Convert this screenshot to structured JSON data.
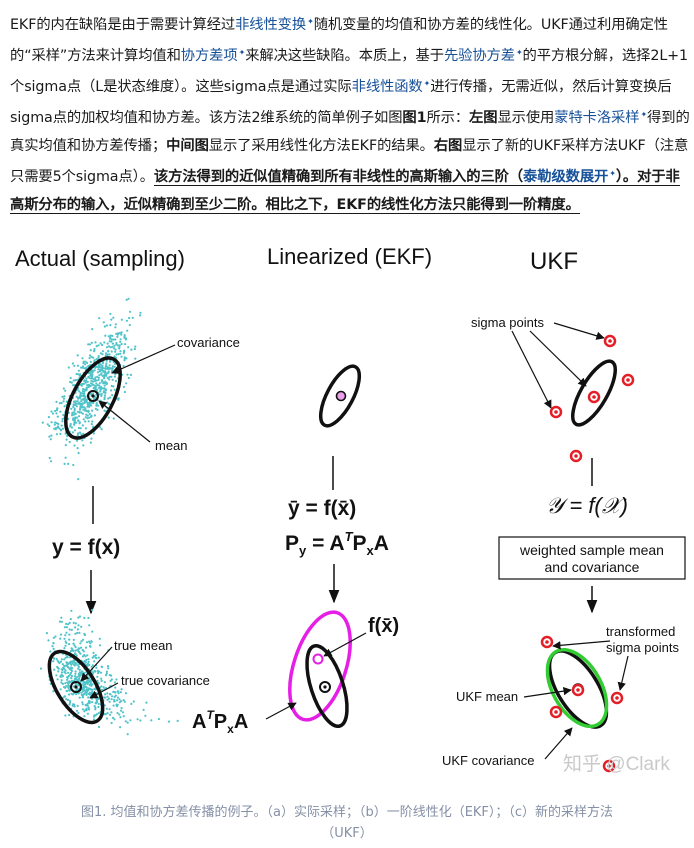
{
  "paragraph": {
    "s01": "EKF的内在缺陷是由于需要计算经过",
    "s02": "非线性变换",
    "s03": "随机变量的均值和协方差的线性化。UKF通过利用确定性的“采样”方法来计算均值和",
    "s04": "协方差项",
    "s05": "来解决这些缺陷。本质上，基于",
    "s06": "先验协方差",
    "s07": "的平方根分解，选择2L+1个sigma点（L是状态维度）。这些sigma点是通过实际",
    "s08": "非线性函数",
    "s09": "进行传播，无需近似，然后计算变换后sigma点的加权均值和协方差。该方法2维系统的简单例子如图",
    "s10": "图1",
    "s11": "所示：",
    "s12": "左图",
    "s13": "显示使用",
    "s14": "蒙特卡洛采样",
    "s15": "得到的真实均值和协方差传播；",
    "s16": "中间图",
    "s17": "显示了采用线性化方法EKF的结果。",
    "s18": "右图",
    "s19": "显示了新的UKF采样方法UKF（注意只需要5个sigma点）。",
    "s20": "该方法得到的近似值精确到所有非线性的高斯输入的三阶（",
    "s21": "泰勒级数展开",
    "s22": "）。对于非高斯分布的输入，近似精确到至少二阶。相比之下，EKF的线性化方法只能得到一阶精度。"
  },
  "figure": {
    "panel_titles": [
      "Actual (sampling)",
      "Linearized (EKF)",
      "UKF"
    ],
    "left": {
      "covariance": "covariance",
      "mean": "mean",
      "equation": "y = f(x)",
      "true_mean": "true mean",
      "true_covariance": "true covariance"
    },
    "middle": {
      "eq1": "ȳ = f(x̄)",
      "eq2_lhs": "P",
      "eq2_sub": "y",
      "eq2_rhs": " = A",
      "eq2_sup": "T",
      "eq2_tail": "P",
      "eq2_sub2": "x",
      "eq2_end": "A",
      "fx_label": "f(x̄)",
      "cov_label_a": "A",
      "cov_label_sup": "T",
      "cov_label_p": "P",
      "cov_label_sub": "x",
      "cov_label_end": "A"
    },
    "right": {
      "sigma_points": "sigma points",
      "equation": "𝒴 = f(𝒳)",
      "box_line1": "weighted sample mean",
      "box_line2": "and covariance",
      "transformed_line1": "transformed",
      "transformed_line2": "sigma points",
      "ukf_mean": "UKF mean",
      "ukf_covariance": "UKF covariance"
    },
    "watermark": "知乎 @Clark",
    "colors": {
      "scatter": "#4fc3c9",
      "ekf_ellipse": "#e61fe6",
      "ukf_ellipse": "#33cc33",
      "sigma": "#e41e26"
    }
  },
  "caption": {
    "line1": "图1. 均值和协方差传播的例子。（a）实际采样；（b）一阶线性化（EKF）；（c）新的采样方法",
    "line2": "（UKF）"
  }
}
